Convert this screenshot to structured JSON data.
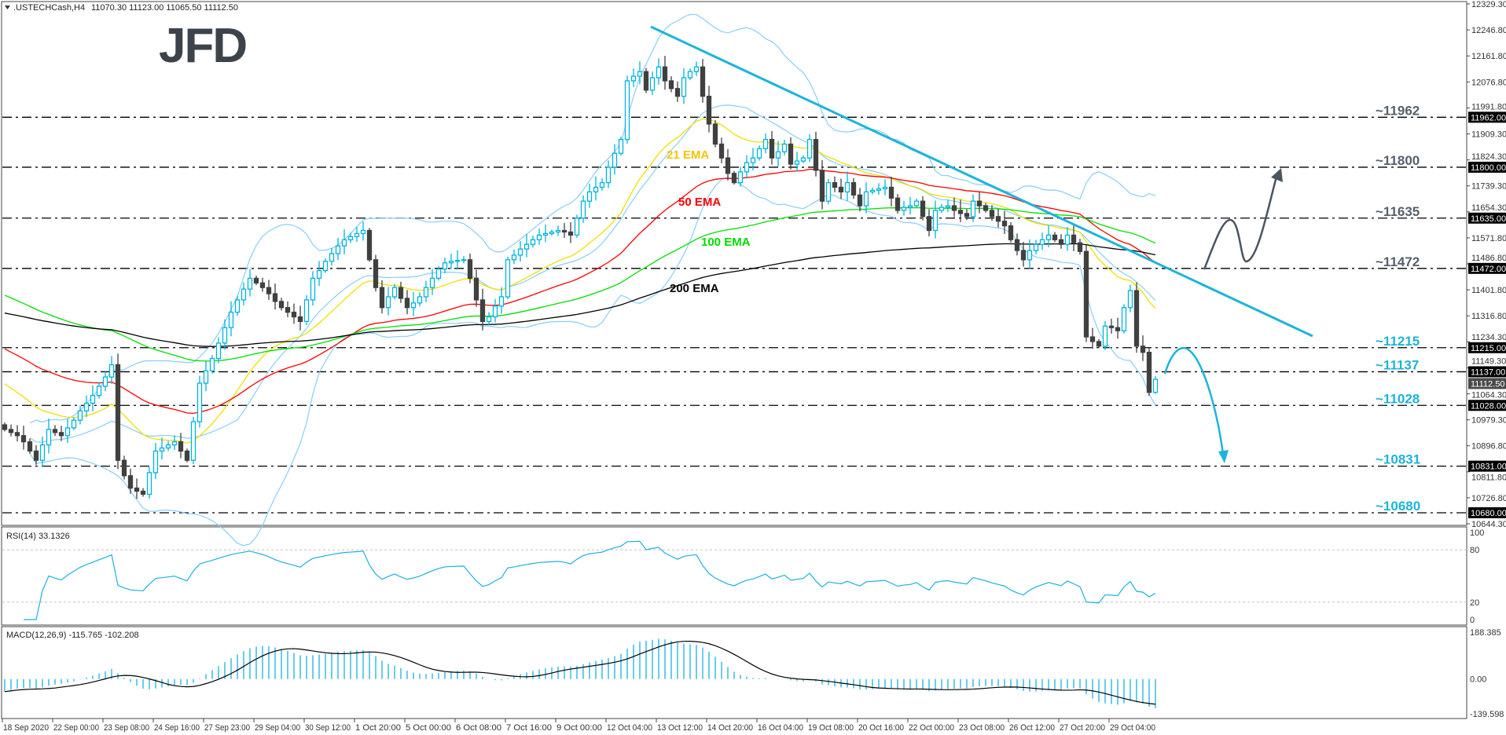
{
  "header": {
    "collapse_icon": "triangle-down-icon",
    "symbol": ".USTECHCash,H4",
    "ohlc": "11070.30 11123.00 11065.50 11112.50"
  },
  "logo": {
    "text": "JFD"
  },
  "colors": {
    "bull": "#00b4e0",
    "bear": "#404040",
    "bollinger": "#87cefa",
    "trendline": "#1cb4dc",
    "scenario_up": "#4a5561",
    "scenario_down": "#1cb4dc",
    "rsi": "#1ab2e0",
    "macd_hist": "#1ab2e0",
    "macd_signal": "#000000"
  },
  "chart_data": {
    "type": "candlestick",
    "symbol": ".USTECHCash",
    "timeframe": "H4",
    "y_range": [
      10644.3,
      12329.3
    ],
    "grid": false,
    "price_axis_ticks": [
      "12329.30",
      "12246.80",
      "12161.80",
      "12076.80",
      "11991.80",
      "11909.30",
      "11824.30",
      "11739.30",
      "11654.30",
      "11571.80",
      "11486.80",
      "11401.80",
      "11316.80",
      "11234.30",
      "11149.30",
      "11064.30",
      "10979.30",
      "10896.80",
      "10811.80",
      "10726.80",
      "10644.30"
    ],
    "x_tick_labels": [
      "18 Sep 2020",
      "22 Sep 00:00",
      "23 Sep 08:00",
      "24 Sep 16:00",
      "27 Sep 23:00",
      "29 Sep 04:00",
      "30 Sep 12:00",
      "1 Oct 20:00",
      "5 Oct 00:00",
      "6 Oct 08:00",
      "7 Oct 16:00",
      "9 Oct 00:00",
      "12 Oct 04:00",
      "13 Oct 12:00",
      "14 Oct 20:00",
      "16 Oct 04:00",
      "19 Oct 08:00",
      "20 Oct 16:00",
      "22 Oct 00:00",
      "23 Oct 08:00",
      "26 Oct 12:00",
      "27 Oct 20:00",
      "29 Oct 04:00"
    ],
    "current_price": "11112.50",
    "last_bar": {
      "open": 11070.3,
      "high": 11123.0,
      "low": 11065.5,
      "close": 11112.5
    },
    "close": [
      10950,
      10940,
      10930,
      10910,
      10880,
      10850,
      10900,
      10950,
      10940,
      10930,
      10955,
      10980,
      11010,
      11035,
      11060,
      11090,
      11120,
      11160,
      10850,
      10800,
      10760,
      10750,
      10740,
      10810,
      10880,
      10890,
      10900,
      10910,
      10880,
      10850,
      10975,
      11100,
      11140,
      11180,
      11230,
      11280,
      11330,
      11370,
      11405,
      11440,
      11425,
      11410,
      11390,
      11365,
      11345,
      11330,
      11315,
      11300,
      11370,
      11440,
      11465,
      11495,
      11520,
      11545,
      11565,
      11575,
      11585,
      11595,
      11500,
      11410,
      11345,
      11380,
      11410,
      11375,
      11345,
      11360,
      11380,
      11410,
      11440,
      11470,
      11490,
      11495,
      11498,
      11500,
      11440,
      11370,
      11300,
      11315,
      11350,
      11380,
      11500,
      11515,
      11535,
      11550,
      11565,
      11580,
      11585,
      11590,
      11595,
      11590,
      11580,
      11635,
      11690,
      11720,
      11735,
      11750,
      11800,
      11845,
      11890,
      12080,
      12095,
      12110,
      12050,
      12090,
      12125,
      12080,
      12055,
      12030,
      12090,
      12110,
      12125,
      12030,
      11940,
      11875,
      11830,
      11780,
      11750,
      11785,
      11815,
      11830,
      11860,
      11890,
      11830,
      11850,
      11875,
      11810,
      11820,
      11830,
      11890,
      11790,
      11690,
      11750,
      11735,
      11720,
      11750,
      11710,
      11675,
      11720,
      11725,
      11730,
      11735,
      11700,
      11660,
      11670,
      11675,
      11690,
      11640,
      11595,
      11660,
      11670,
      11675,
      11660,
      11650,
      11640,
      11690,
      11675,
      11660,
      11640,
      11625,
      11610,
      11565,
      11530,
      11500,
      11530,
      11550,
      11565,
      11580,
      11565,
      11550,
      11580,
      11555,
      11527,
      11250,
      11235,
      11220,
      11285,
      11280,
      11270,
      11345,
      11400,
      11220,
      11200,
      11070.3,
      11112.5
    ],
    "ema": [
      {
        "label": "21 EMA",
        "period": 21,
        "start": 11113,
        "color": "#f0e000",
        "label_color": "#f5c400"
      },
      {
        "label": "50 EMA",
        "period": 50,
        "start": 11222,
        "color": "#ff0000",
        "label_color": "#ff0000"
      },
      {
        "label": "100 EMA",
        "period": 100,
        "start": 11394,
        "color": "#00e000",
        "label_color": "#00dd00"
      },
      {
        "label": "200 EMA",
        "period": 200,
        "start": 11331,
        "color": "#000000",
        "label_color": "#000000"
      }
    ],
    "bollinger": {
      "period": 20,
      "deviations": 2
    },
    "levels": [
      {
        "price": 11962,
        "label": "~11962",
        "tag": "11962.00",
        "color": "#56606b"
      },
      {
        "price": 11800,
        "label": "~11800",
        "tag": "11800.00",
        "color": "#56606b"
      },
      {
        "price": 11635,
        "label": "~11635",
        "tag": "11635.00",
        "color": "#56606b"
      },
      {
        "price": 11472,
        "label": "~11472",
        "tag": "11472.00",
        "color": "#56606b"
      },
      {
        "price": 11215,
        "label": "~11215",
        "tag": "11215.00",
        "color": "#1cb4dc"
      },
      {
        "price": 11137,
        "label": "~11137",
        "tag": "11137.00",
        "color": "#1cb4dc"
      },
      {
        "price": 11028,
        "label": "~11028",
        "tag": "11028.00",
        "color": "#1cb4dc"
      },
      {
        "price": 10831,
        "label": "~10831",
        "tag": "10831.00",
        "color": "#1cb4dc"
      },
      {
        "price": 10680,
        "label": "~10680",
        "tag": "10680.00",
        "color": "#1cb4dc"
      }
    ],
    "rsi": {
      "title": "RSI(14) 33.1326",
      "period": 14,
      "levels": [
        80,
        20
      ],
      "axis": [
        "100",
        "80",
        "20",
        "0"
      ]
    },
    "macd": {
      "title": "MACD(12,26,9) -115.765 -102.208",
      "fast": 12,
      "slow": 26,
      "signal": 9,
      "range": [
        -139.598,
        188.385
      ],
      "axis": [
        "188.385",
        "0.00",
        "-139.598"
      ]
    }
  }
}
